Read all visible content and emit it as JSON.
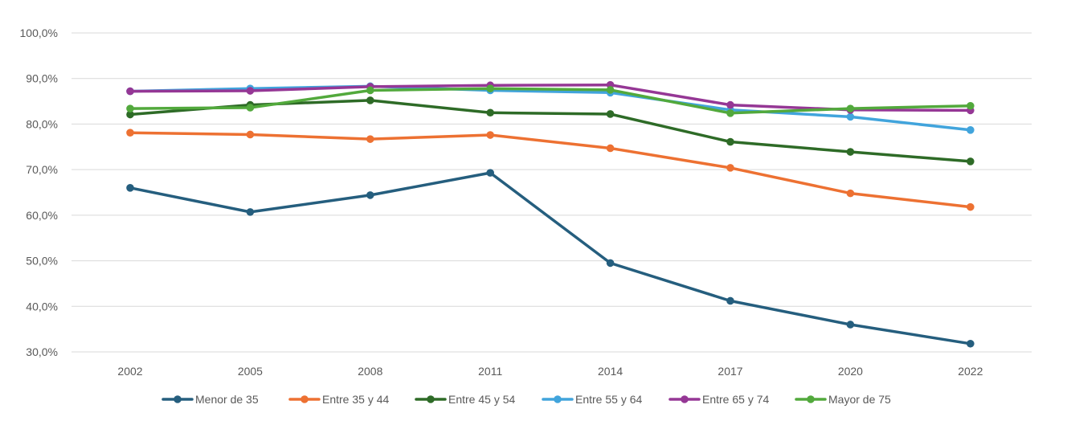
{
  "chart_data": {
    "type": "line",
    "title": "",
    "xlabel": "",
    "ylabel": "",
    "categories": [
      "2002",
      "2005",
      "2008",
      "2011",
      "2014",
      "2017",
      "2020",
      "2022"
    ],
    "ylim": [
      30,
      100
    ],
    "yticks": [
      30,
      40,
      50,
      60,
      70,
      80,
      90,
      100
    ],
    "ytick_labels": [
      "30,0%",
      "40,0%",
      "50,0%",
      "60,0%",
      "70,0%",
      "80,0%",
      "90,0%",
      "100,0%"
    ],
    "grid": true,
    "legend_position": "bottom",
    "series": [
      {
        "name": "Menor de 35",
        "color": "#255E7E",
        "values": [
          66.0,
          60.7,
          64.4,
          69.3,
          49.5,
          41.2,
          36.0,
          31.8
        ]
      },
      {
        "name": "Entre 35 y 44",
        "color": "#ED7132",
        "values": [
          78.1,
          77.7,
          76.7,
          77.6,
          74.7,
          70.4,
          64.8,
          61.8
        ]
      },
      {
        "name": "Entre 45 y 54",
        "color": "#2E6B27",
        "values": [
          82.1,
          84.2,
          85.2,
          82.5,
          82.2,
          76.1,
          73.9,
          71.8
        ]
      },
      {
        "name": "Entre 55 y 64",
        "color": "#41A4DC",
        "values": [
          87.2,
          87.8,
          88.3,
          87.4,
          86.9,
          83.1,
          81.6,
          78.7
        ]
      },
      {
        "name": "Entre 65 y 74",
        "color": "#953795",
        "values": [
          87.2,
          87.3,
          88.2,
          88.5,
          88.6,
          84.2,
          83.1,
          83.0
        ]
      },
      {
        "name": "Mayor de 75",
        "color": "#52A93C",
        "values": [
          83.4,
          83.6,
          87.4,
          87.8,
          87.5,
          82.4,
          83.4,
          84.0
        ]
      }
    ]
  }
}
